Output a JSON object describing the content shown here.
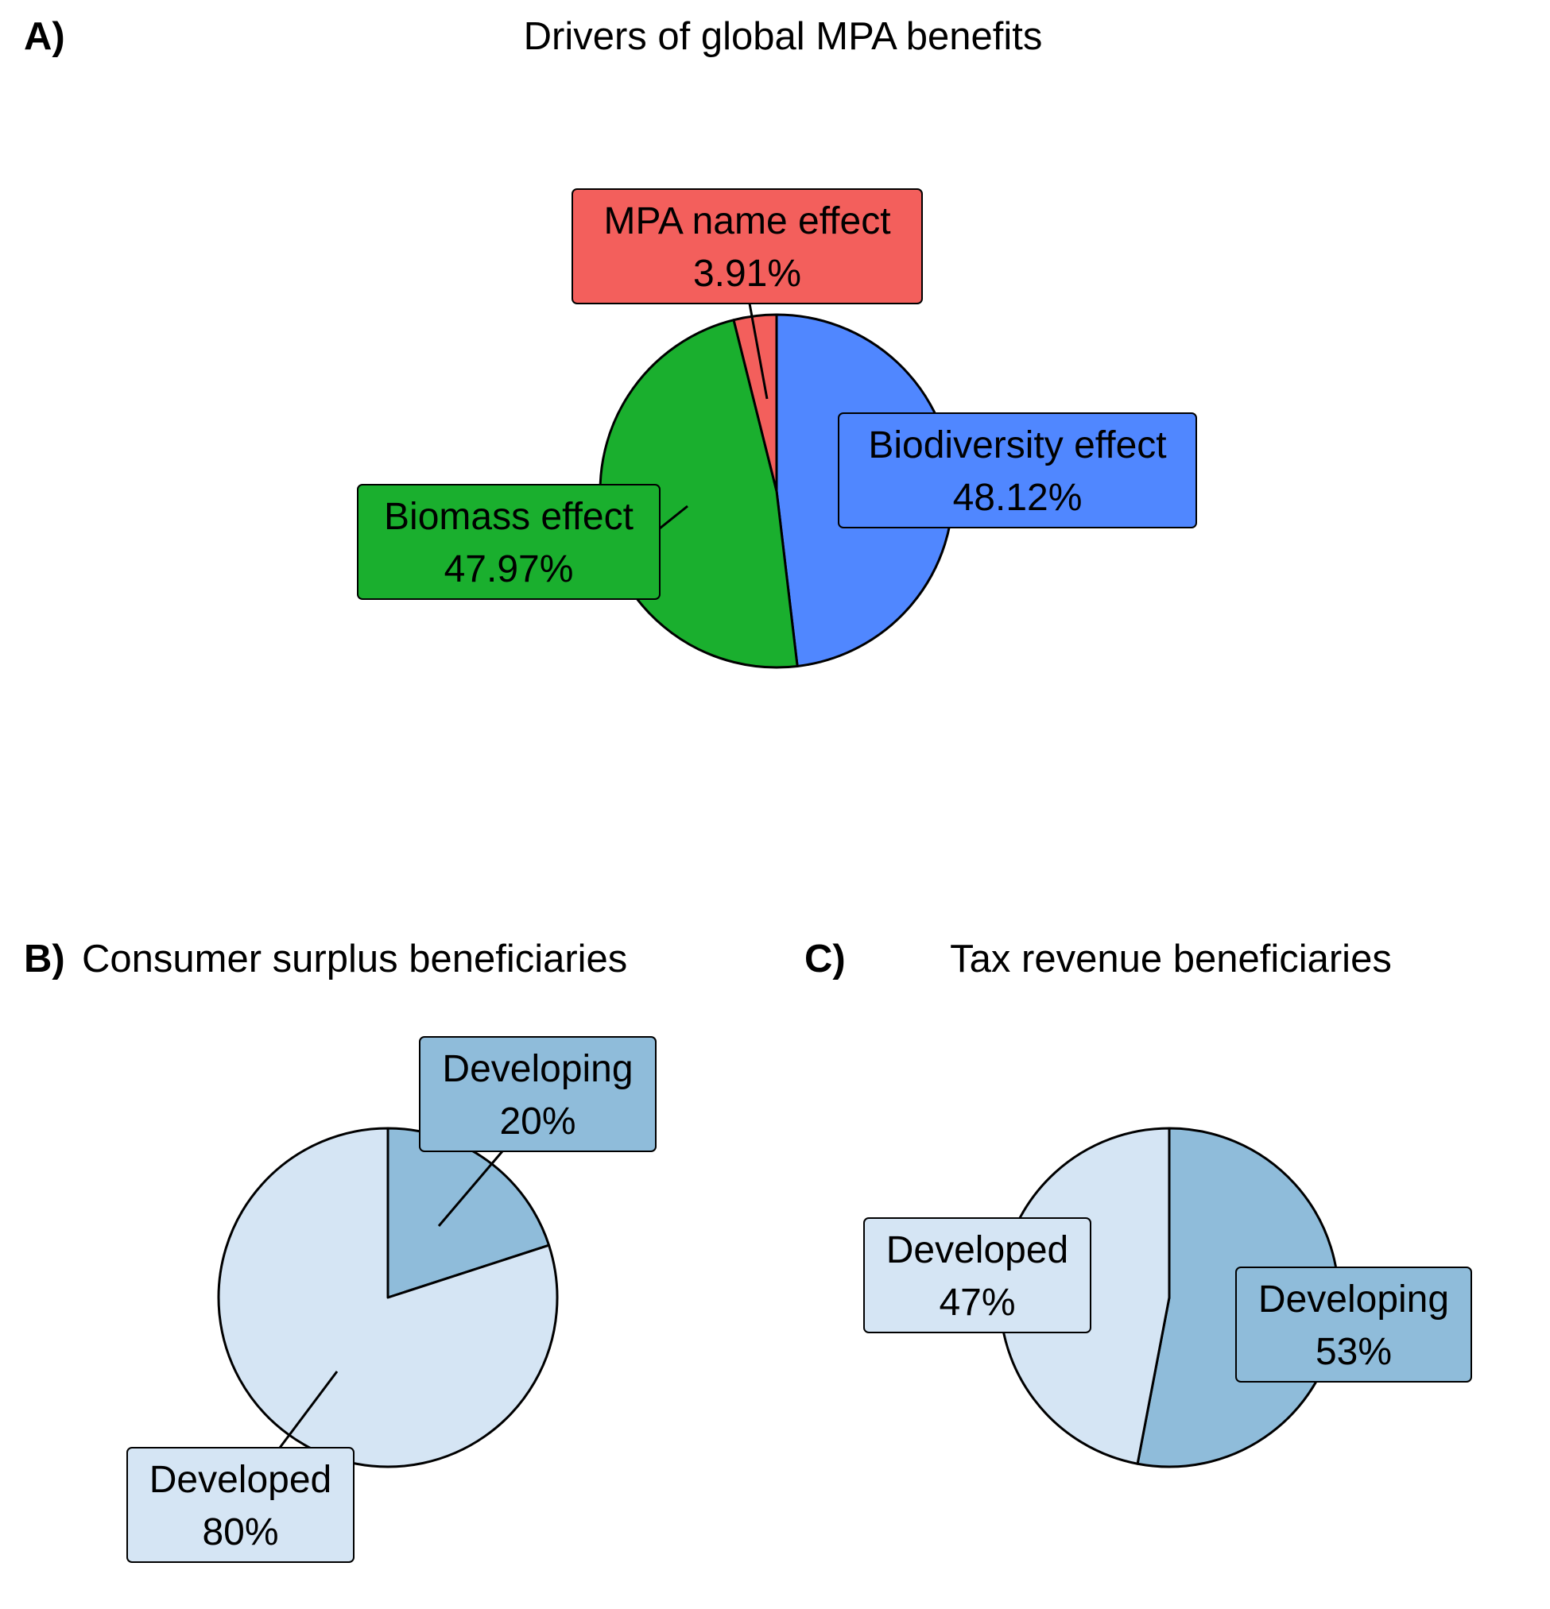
{
  "chart_data": [
    {
      "type": "pie",
      "panel_letter": "A)",
      "title": "Drivers of global MPA benefits",
      "slices": [
        {
          "name": "Biodiversity effect",
          "value": 48.12,
          "label": "48.12%",
          "color": "#5087FF"
        },
        {
          "name": "Biomass effect",
          "value": 47.97,
          "label": "47.97%",
          "color": "#1AAF2E"
        },
        {
          "name": "MPA name effect",
          "value": 3.91,
          "label": "3.91%",
          "color": "#F35F5C"
        }
      ]
    },
    {
      "type": "pie",
      "panel_letter": "B)",
      "title": "Consumer surplus beneficiaries",
      "slices": [
        {
          "name": "Developing",
          "value": 20,
          "label": "20%",
          "color": "#8FBCDA"
        },
        {
          "name": "Developed",
          "value": 80,
          "label": "80%",
          "color": "#D5E5F4"
        }
      ]
    },
    {
      "type": "pie",
      "panel_letter": "C)",
      "title": "Tax revenue beneficiaries",
      "slices": [
        {
          "name": "Developing",
          "value": 53,
          "label": "53%",
          "color": "#8FBCDA"
        },
        {
          "name": "Developed",
          "value": 47,
          "label": "47%",
          "color": "#D5E5F4"
        }
      ]
    }
  ]
}
